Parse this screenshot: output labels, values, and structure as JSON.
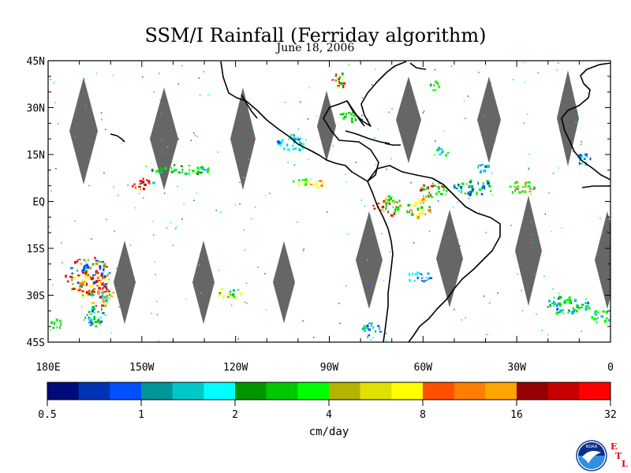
{
  "header": {
    "title": "SSM/I Rainfall (Ferriday algorithm)",
    "date": "June 18, 2006"
  },
  "map": {
    "lon_range": [
      -180,
      0
    ],
    "lat_range": [
      -45,
      45
    ],
    "lat_labels": [
      "45N",
      "30N",
      "15N",
      "EQ",
      "15S",
      "30S",
      "45S"
    ],
    "lat_values": [
      45,
      30,
      15,
      0,
      -15,
      -30,
      -45
    ],
    "lon_labels": [
      "180E",
      "150W",
      "120W",
      "90W",
      "60W",
      "30W",
      "0"
    ],
    "lon_values": [
      -180,
      -150,
      -120,
      -90,
      -60,
      -30,
      0
    ],
    "missing_data_color": "#666666",
    "coastline_color": "#000000"
  },
  "colorbar": {
    "unit": "cm/day",
    "labels": [
      "0.5",
      "1",
      "2",
      "4",
      "8",
      "16",
      "32"
    ],
    "colors": [
      "#000a7a",
      "#0032b4",
      "#0050ff",
      "#00969a",
      "#00c8c8",
      "#00ffff",
      "#009600",
      "#00c800",
      "#00ff00",
      "#b4b400",
      "#e1e100",
      "#ffff00",
      "#ff5000",
      "#ff7d00",
      "#ffa500",
      "#960000",
      "#c80000",
      "#ff0000"
    ]
  },
  "logo": {
    "name": "NOAA",
    "etl_letters": [
      "E",
      "T",
      "L"
    ]
  }
}
